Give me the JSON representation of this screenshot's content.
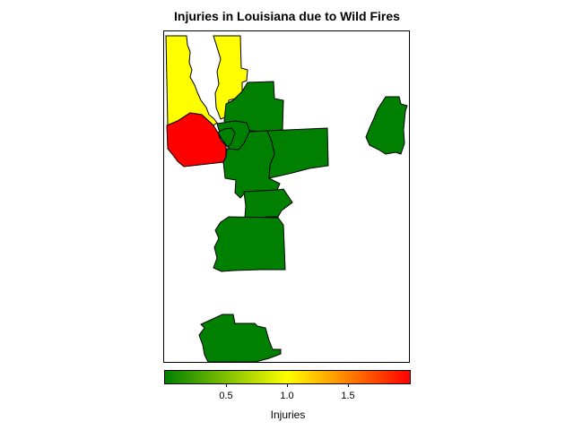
{
  "title": "Injuries in Louisiana due to Wild Fires",
  "legend": {
    "title": "Injuries",
    "colors": [
      "#008000",
      "#ffff00",
      "#ff0000"
    ],
    "range": [
      0,
      2
    ],
    "ticks": [
      "0.5",
      "1.0",
      "1.5"
    ]
  },
  "chart_data": {
    "type": "choropleth",
    "title": "Injuries in Louisiana due to Wild Fires",
    "value_label": "Injuries",
    "scale": {
      "min": 0,
      "max": 2,
      "colors": [
        "#008000",
        "#ffff00",
        "#ff0000"
      ]
    },
    "regions": [
      {
        "value": 1
      },
      {
        "value": 2
      },
      {
        "value": 1
      },
      {
        "value": 0
      },
      {
        "value": 0
      },
      {
        "value": 0
      },
      {
        "value": 0
      },
      {
        "value": 0
      },
      {
        "value": 0
      },
      {
        "value": 0
      },
      {
        "value": 0
      },
      {
        "value": 0
      }
    ]
  }
}
